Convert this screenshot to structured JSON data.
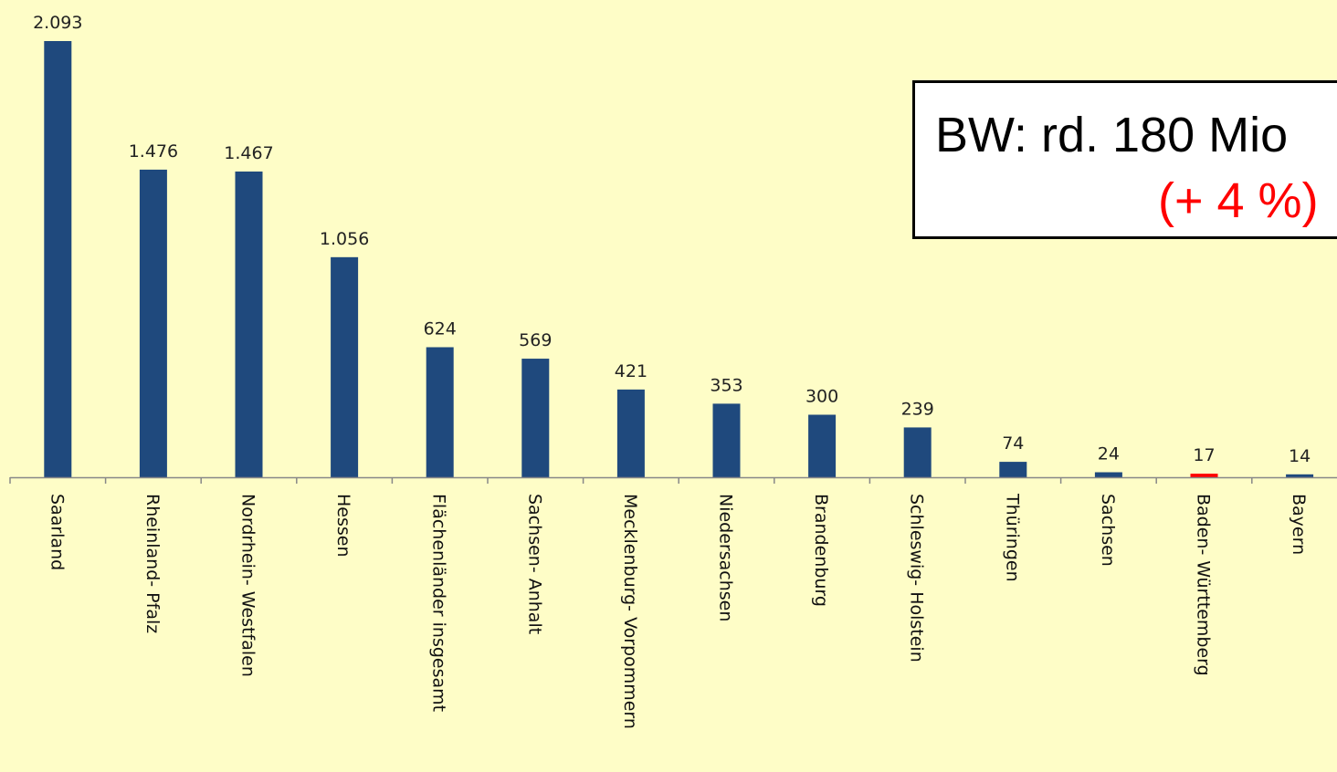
{
  "chart_data": {
    "type": "bar",
    "categories": [
      "Saarland",
      "Rheinland- Pfalz",
      "Nordrhein- Westfalen",
      "Hessen",
      "Flächenländer insgesamt",
      "Sachsen- Anhalt",
      "Mecklenburg- Vorpommern",
      "Niedersachsen",
      "Brandenburg",
      "Schleswig- Holstein",
      "Thüringen",
      "Sachsen",
      "Baden- Württemberg",
      "Bayern"
    ],
    "values": [
      2093,
      1476,
      1467,
      1056,
      624,
      569,
      421,
      353,
      300,
      239,
      74,
      24,
      17,
      14
    ],
    "value_labels": [
      "2.093",
      "1.476",
      "1.467",
      "1.056",
      "624",
      "569",
      "421",
      "353",
      "300",
      "239",
      "74",
      "24",
      "17",
      "14"
    ],
    "bar_color": "#1f497d",
    "highlight_color": "#ff0000",
    "highlight_category": "Baden- Württemberg",
    "ylim": [
      0,
      2093
    ],
    "grid": false,
    "legend": "none"
  },
  "callout": {
    "line1": "BW: rd. 180 Mio",
    "line2": "(+ 4 %)"
  },
  "colors": {
    "background": "#fefdc7",
    "axis": "#888888"
  }
}
